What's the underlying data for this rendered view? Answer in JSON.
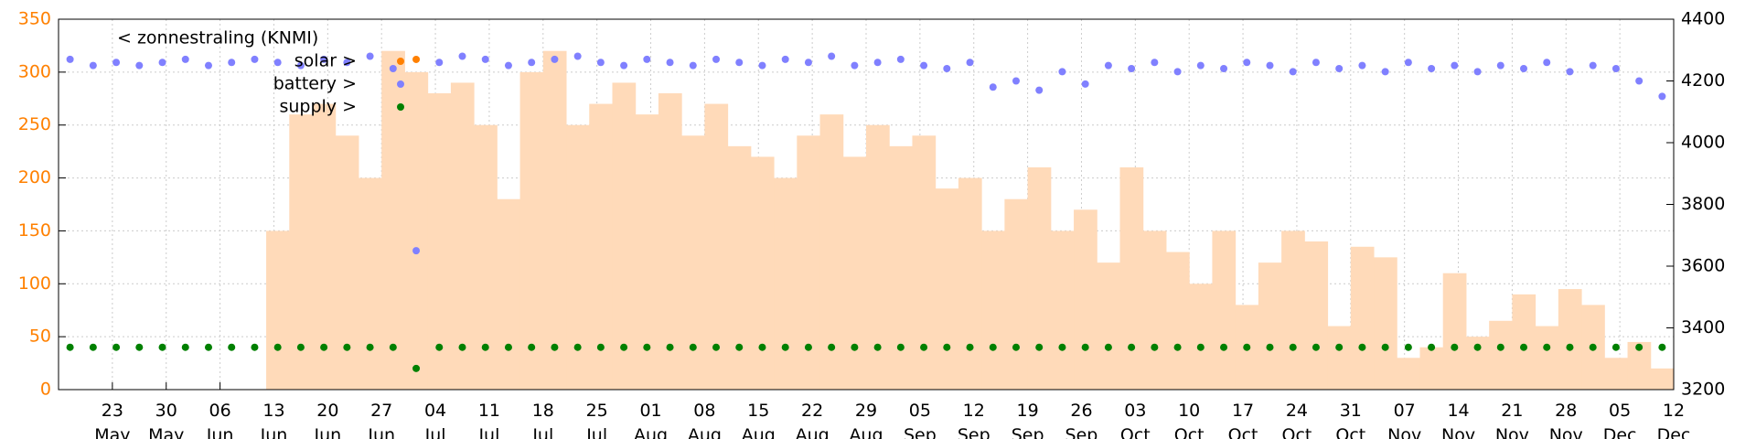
{
  "chart_data": {
    "type": "line",
    "x": [
      "05-16",
      "05-19",
      "05-22",
      "05-25",
      "05-28",
      "05-31",
      "06-03",
      "06-06",
      "06-09",
      "06-12",
      "06-15",
      "06-18",
      "06-21",
      "06-24",
      "06-27",
      "06-30",
      "07-03",
      "07-06",
      "07-09",
      "07-12",
      "07-15",
      "07-18",
      "07-21",
      "07-24",
      "07-27",
      "07-30",
      "08-02",
      "08-05",
      "08-08",
      "08-11",
      "08-14",
      "08-17",
      "08-20",
      "08-23",
      "08-26",
      "08-29",
      "09-01",
      "09-04",
      "09-07",
      "09-10",
      "09-13",
      "09-16",
      "09-19",
      "09-22",
      "09-25",
      "09-28",
      "10-01",
      "10-04",
      "10-07",
      "10-10",
      "10-13",
      "10-16",
      "10-19",
      "10-22",
      "10-25",
      "10-28",
      "10-31",
      "11-03",
      "11-06",
      "11-09",
      "11-12",
      "11-15",
      "11-18",
      "11-21",
      "11-24",
      "11-27",
      "11-30",
      "12-03",
      "12-06",
      "12-09"
    ],
    "series": [
      {
        "name": "< zonnestraling (KNMI)",
        "color": "#ffdab9",
        "style": "area",
        "values": [
          null,
          null,
          null,
          null,
          null,
          null,
          null,
          null,
          null,
          150,
          260,
          270,
          240,
          200,
          320,
          300,
          280,
          290,
          250,
          180,
          300,
          320,
          250,
          270,
          290,
          260,
          280,
          240,
          270,
          230,
          220,
          200,
          240,
          260,
          220,
          250,
          230,
          240,
          190,
          200,
          150,
          180,
          210,
          150,
          170,
          120,
          210,
          150,
          130,
          100,
          150,
          80,
          120,
          150,
          140,
          60,
          135,
          125,
          30,
          40,
          110,
          50,
          65,
          90,
          60,
          95,
          80,
          30,
          45,
          20
        ]
      },
      {
        "name": "solar >",
        "color": "#ff8000",
        "style": "points",
        "values": [
          null,
          null,
          null,
          null,
          null,
          null,
          null,
          null,
          null,
          null,
          null,
          null,
          null,
          null,
          null,
          312,
          null,
          null,
          null,
          null,
          null,
          null,
          null,
          null,
          null,
          null,
          null,
          null,
          null,
          null,
          null,
          null,
          null,
          null,
          null,
          null,
          null,
          null,
          null,
          null,
          null,
          null,
          null,
          null,
          null,
          null,
          null,
          null,
          null,
          null,
          null,
          null,
          null,
          null,
          null,
          null,
          null,
          null,
          null,
          null,
          null,
          null,
          null,
          null,
          null,
          null,
          null,
          null,
          null,
          null
        ]
      },
      {
        "name": "battery >",
        "color": "#8080ff",
        "style": "points",
        "axis": "y2",
        "values": [
          4270,
          4250,
          4260,
          4250,
          4260,
          4270,
          4250,
          4260,
          4270,
          4260,
          4250,
          4270,
          4260,
          4280,
          4240,
          3650,
          4260,
          4280,
          4270,
          4250,
          4260,
          4270,
          4280,
          4260,
          4250,
          4270,
          4260,
          4250,
          4270,
          4260,
          4250,
          4270,
          4260,
          4280,
          4250,
          4260,
          4270,
          4250,
          4240,
          4260,
          4180,
          4200,
          4170,
          4230,
          4190,
          4250,
          4240,
          4260,
          4230,
          4250,
          4240,
          4260,
          4250,
          4230,
          4260,
          4240,
          4250,
          4230,
          4260,
          4240,
          4250,
          4230,
          4250,
          4240,
          4260,
          4230,
          4250,
          4240,
          4200,
          4150
        ]
      },
      {
        "name": "supply >",
        "color": "#008000",
        "style": "points",
        "values": [
          40,
          40,
          40,
          40,
          40,
          40,
          40,
          40,
          40,
          40,
          40,
          40,
          40,
          40,
          40,
          20,
          40,
          40,
          40,
          40,
          40,
          40,
          40,
          40,
          40,
          40,
          40,
          40,
          40,
          40,
          40,
          40,
          40,
          40,
          40,
          40,
          40,
          40,
          40,
          40,
          40,
          40,
          40,
          40,
          40,
          40,
          40,
          40,
          40,
          40,
          40,
          40,
          40,
          40,
          40,
          40,
          40,
          40,
          40,
          40,
          40,
          40,
          40,
          40,
          40,
          40,
          40,
          40,
          40,
          40
        ]
      }
    ],
    "xlim": [
      "05-16",
      "12-12"
    ],
    "xticks": [
      {
        "value": "05-23",
        "label": "23 May"
      },
      {
        "value": "05-30",
        "label": "30 May"
      },
      {
        "value": "06-06",
        "label": "06 Jun"
      },
      {
        "value": "06-13",
        "label": "13 Jun"
      },
      {
        "value": "06-20",
        "label": "20 Jun"
      },
      {
        "value": "06-27",
        "label": "27 Jun"
      },
      {
        "value": "07-04",
        "label": "04 Jul"
      },
      {
        "value": "07-11",
        "label": "11 Jul"
      },
      {
        "value": "07-18",
        "label": "18 Jul"
      },
      {
        "value": "07-25",
        "label": "25 Jul"
      },
      {
        "value": "08-01",
        "label": "01 Aug"
      },
      {
        "value": "08-08",
        "label": "08 Aug"
      },
      {
        "value": "08-15",
        "label": "15 Aug"
      },
      {
        "value": "08-22",
        "label": "22 Aug"
      },
      {
        "value": "08-29",
        "label": "29 Aug"
      },
      {
        "value": "09-05",
        "label": "05 Sep"
      },
      {
        "value": "09-12",
        "label": "12 Sep"
      },
      {
        "value": "09-19",
        "label": "19 Sep"
      },
      {
        "value": "09-26",
        "label": "26 Sep"
      },
      {
        "value": "10-03",
        "label": "03 Oct"
      },
      {
        "value": "10-10",
        "label": "10 Oct"
      },
      {
        "value": "10-17",
        "label": "17 Oct"
      },
      {
        "value": "10-24",
        "label": "24 Oct"
      },
      {
        "value": "10-31",
        "label": "31 Oct"
      },
      {
        "value": "11-07",
        "label": "07 Nov"
      },
      {
        "value": "11-14",
        "label": "14 Nov"
      },
      {
        "value": "11-21",
        "label": "21 Nov"
      },
      {
        "value": "11-28",
        "label": "28 Nov"
      },
      {
        "value": "12-05",
        "label": "05 Dec"
      },
      {
        "value": "12-12",
        "label": "12 Dec"
      }
    ],
    "ylim": [
      0,
      350
    ],
    "yticks": [
      0,
      50,
      100,
      150,
      200,
      250,
      300,
      350
    ],
    "ytick_color": "#ff8000",
    "y2lim": [
      3200,
      4400
    ],
    "y2ticks": [
      3200,
      3400,
      3600,
      3800,
      4000,
      4200,
      4400
    ],
    "grid": true
  }
}
